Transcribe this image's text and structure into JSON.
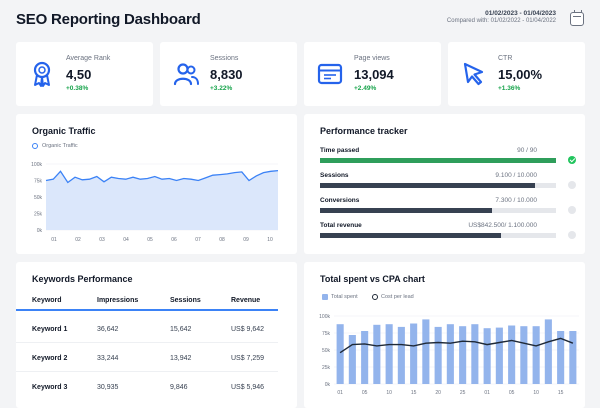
{
  "header": {
    "title": "SEO Reporting Dashboard",
    "date_range": "01/02/2023 - 01/04/2023",
    "compare_text": "Compared with: 01/02/2022 - 01/04/2022"
  },
  "kpis": [
    {
      "label": "Average Rank",
      "value": "4,50",
      "delta": "+0.38%",
      "icon": "ribbon-icon"
    },
    {
      "label": "Sessions",
      "value": "8,830",
      "delta": "+3.22%",
      "icon": "users-icon"
    },
    {
      "label": "Page views",
      "value": "13,094",
      "delta": "+2.49%",
      "icon": "browser-window-icon"
    },
    {
      "label": "CTR",
      "value": "15,00%",
      "delta": "+1.36%",
      "icon": "cursor-icon"
    }
  ],
  "organic": {
    "title": "Organic Traffic",
    "legend": "Organic Traffic"
  },
  "performance": {
    "title": "Performance tracker",
    "items": [
      {
        "label": "Time passed",
        "value": "90 / 90",
        "progress": 1.0,
        "color": "#2f9e5b",
        "done": true
      },
      {
        "label": "Sessions",
        "value": "9.100 / 10.000",
        "progress": 0.91,
        "color": "#374151",
        "done": false
      },
      {
        "label": "Conversions",
        "value": "7.300 / 10.000",
        "progress": 0.73,
        "color": "#374151",
        "done": false
      },
      {
        "label": "Total revenue",
        "value": "US$842.500/ 1.100.000",
        "progress": 0.766,
        "color": "#374151",
        "done": false
      }
    ]
  },
  "keywords": {
    "title": "Keywords Performance",
    "columns": [
      "Keyword",
      "Impressions",
      "Sessions",
      "Revenue"
    ],
    "rows": [
      [
        "Keyword 1",
        "36,642",
        "15,642",
        "US$ 9,642"
      ],
      [
        "Keyword 2",
        "33,244",
        "13,942",
        "US$ 7,259"
      ],
      [
        "Keyword 3",
        "30,935",
        "9,846",
        "US$ 5,946"
      ]
    ]
  },
  "spend": {
    "title": "Total spent vs CPA chart",
    "legend_spent": "Total spent",
    "legend_cpl": "Cost per lead"
  },
  "colors": {
    "accent": "#3b82f6",
    "area_fill": "#dbe7fb",
    "bar": "#93b4ec",
    "positive": "#16a34a"
  },
  "chart_data": [
    {
      "type": "area",
      "series": [
        {
          "name": "Organic Traffic",
          "values": [
            75000,
            77000,
            89000,
            72000,
            80000,
            76000,
            77000,
            81000,
            73000,
            80000,
            78000,
            77000,
            80000,
            77000,
            78000,
            81000,
            77000,
            78000,
            75000,
            78000,
            77000,
            75000,
            79000,
            83000,
            84000,
            85000,
            87000,
            88000,
            75000,
            82000,
            87000,
            89000,
            90000
          ]
        }
      ],
      "x_ticks": [
        "01",
        "02",
        "03",
        "04",
        "05",
        "06",
        "07",
        "08",
        "09",
        "10"
      ],
      "y_ticks": [
        "100k",
        "75k",
        "50k",
        "25k",
        "0k"
      ],
      "ylim": [
        0,
        100000
      ],
      "grid": true
    },
    {
      "type": "bar",
      "series": [
        {
          "name": "Total spent",
          "values": [
            88000,
            72000,
            78000,
            87000,
            88000,
            84000,
            89000,
            95000,
            84000,
            88000,
            85000,
            88000,
            82000,
            83000,
            86000,
            85000,
            85000,
            95000,
            78000,
            78000
          ]
        },
        {
          "name": "Cost per lead",
          "values": [
            46000,
            58000,
            59000,
            56000,
            58000,
            58000,
            56000,
            60000,
            61000,
            60000,
            63000,
            62000,
            58000,
            61000,
            64000,
            60000,
            56000,
            62000,
            67000,
            60000
          ]
        }
      ],
      "x_ticks": [
        "01",
        "05",
        "10",
        "15",
        "20",
        "25",
        "01",
        "05",
        "10",
        "15"
      ],
      "y_ticks": [
        "100k",
        "75k",
        "50k",
        "25k",
        "0k"
      ],
      "ylim": [
        0,
        100000
      ],
      "grid": true
    }
  ]
}
